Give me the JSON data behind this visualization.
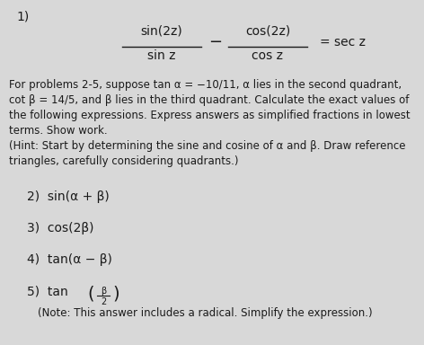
{
  "background_color": "#d8d8d8",
  "text_color": "#1a1a1a",
  "title_number": "1)",
  "fraction1_num": "sin(2z)",
  "fraction1_den": "sin z",
  "fraction2_num": "cos(2z)",
  "fraction2_den": "cos z",
  "minus": "−",
  "equals_rhs": "= sec z",
  "body_line1": "For problems 2-5, suppose tan α = −10/11, α lies in the second quadrant,",
  "body_line2": "cot β = 14/5, and β lies in the third quadrant. Calculate the exact values of",
  "body_line3": "the following expressions. Express answers as simplified fractions in lowest",
  "body_line4": "terms. Show work.",
  "body_line5": "(Hint: Start by determining the sine and cosine of α and β. Draw reference",
  "body_line6": "triangles, carefully considering quadrants.)",
  "prob2": "2)  sin(α + β)",
  "prob3": "3)  cos(2β)",
  "prob4": "4)  tan(α − β)",
  "prob5_prefix": "5)  tan",
  "prob5_beta": "β",
  "prob5_denom": "2",
  "prob5_note": "(Note: This answer includes a radical. Simplify the expression.)",
  "figsize": [
    4.72,
    3.84
  ],
  "dpi": 100
}
